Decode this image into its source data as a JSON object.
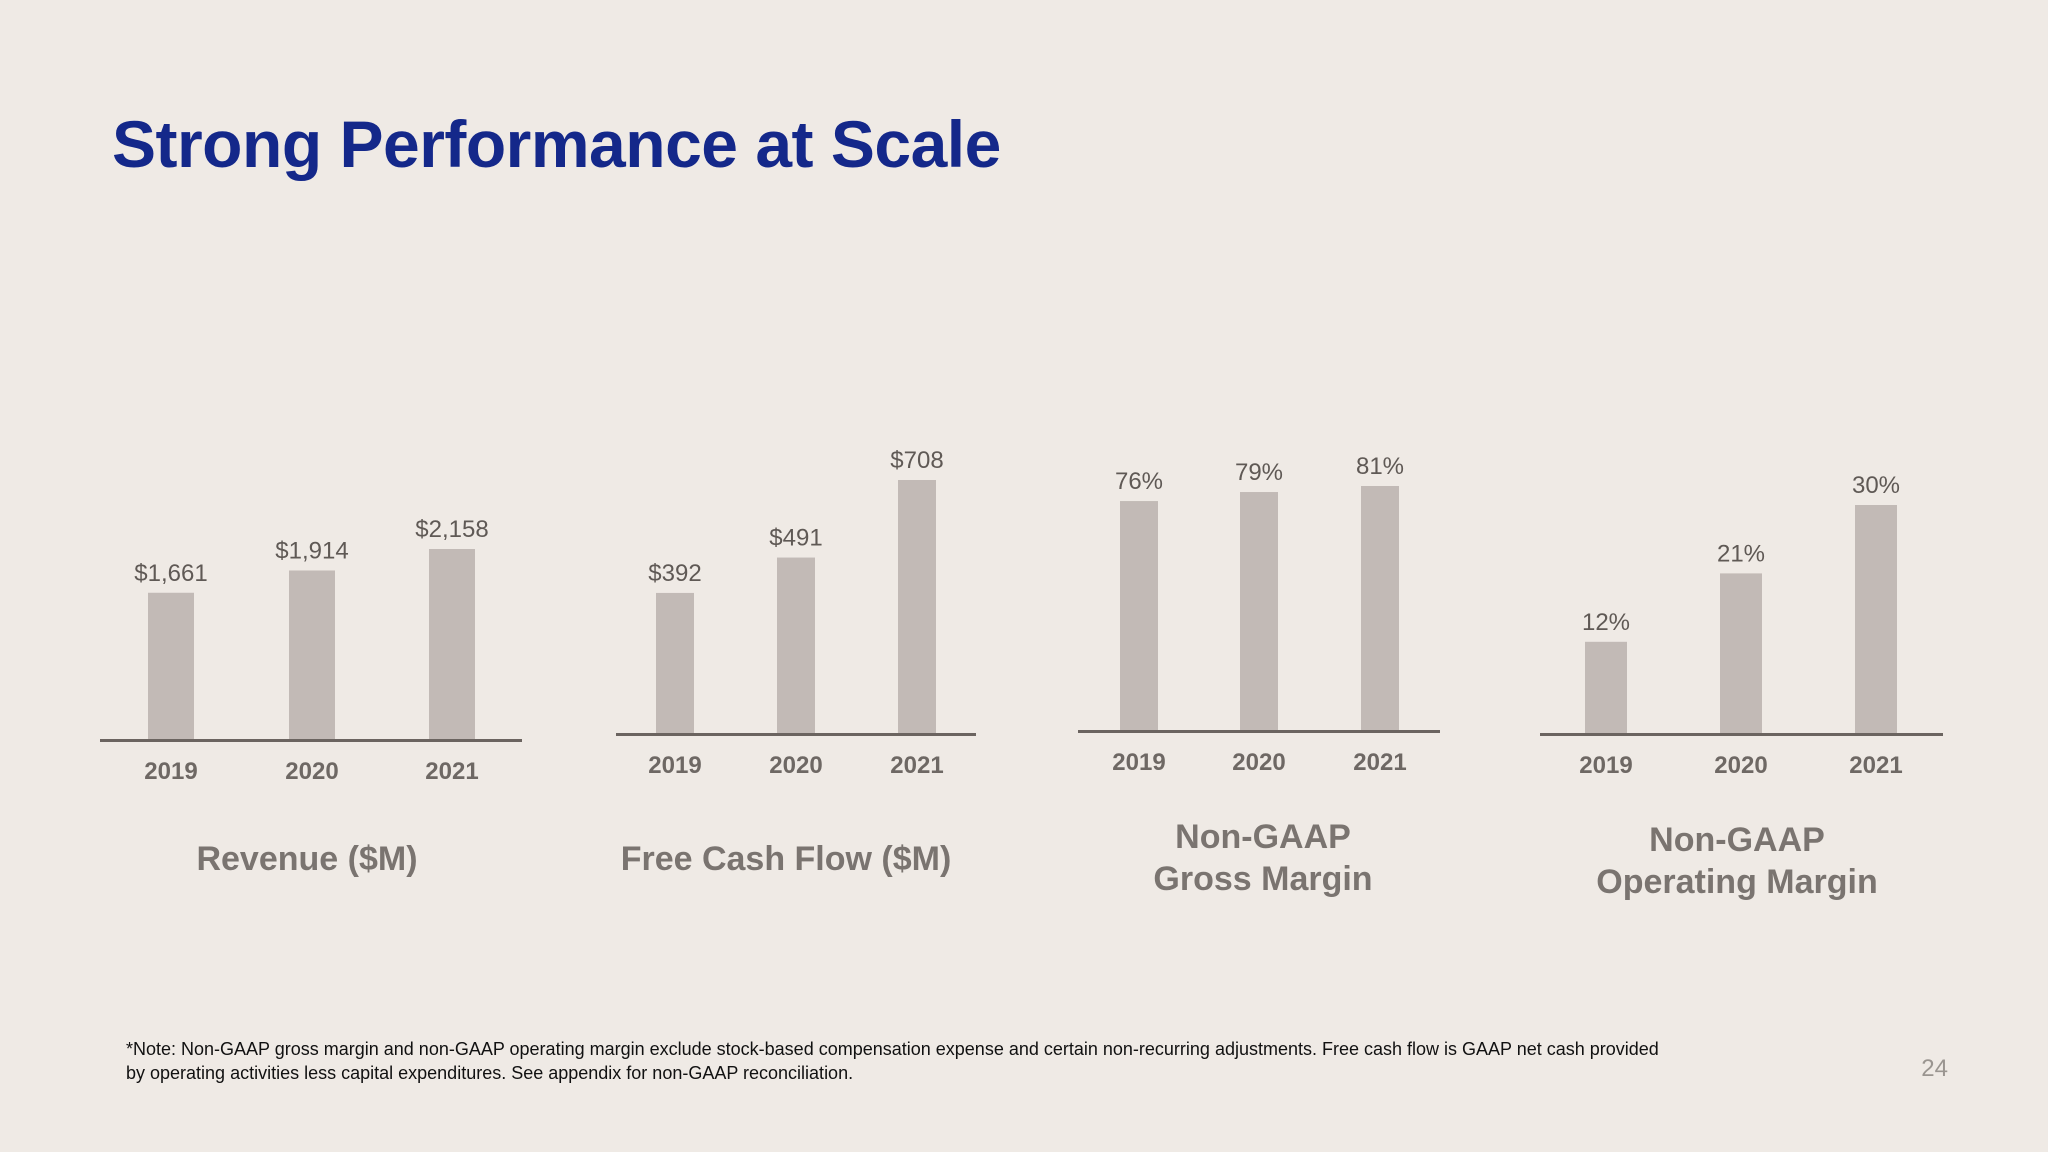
{
  "slide": {
    "title": "Strong Performance at Scale",
    "footnote_line1": "*Note: Non-GAAP gross margin and non-GAAP operating margin exclude stock-based compensation expense and certain non-recurring adjustments. Free cash flow is GAAP net cash provided",
    "footnote_line2": " by operating activities less capital expenditures. See appendix for non-GAAP reconciliation.",
    "page_number": "24"
  },
  "colors": {
    "title": "#14288a",
    "bar": "#c2bab6",
    "axis": "#6b6460",
    "value_label": "#5f5955",
    "tick_label": "#6e6864",
    "caption": "#7a7470"
  },
  "chart_data": [
    {
      "type": "bar",
      "title": "Revenue ($M)",
      "categories": [
        "2019",
        "2020",
        "2021"
      ],
      "values": [
        1661,
        1914,
        2158
      ],
      "value_labels": [
        "$1,661",
        "$1,914",
        "$2,158"
      ]
    },
    {
      "type": "bar",
      "title": "Free Cash Flow ($M)",
      "categories": [
        "2019",
        "2020",
        "2021"
      ],
      "values": [
        392,
        491,
        708
      ],
      "value_labels": [
        "$392",
        "$491",
        "$708"
      ]
    },
    {
      "type": "bar",
      "title": "Non-GAAP\nGross Margin",
      "categories": [
        "2019",
        "2020",
        "2021"
      ],
      "values": [
        76,
        79,
        81
      ],
      "value_labels": [
        "76%",
        "79%",
        "81%"
      ]
    },
    {
      "type": "bar",
      "title": "Non-GAAP\nOperating Margin",
      "categories": [
        "2019",
        "2020",
        "2021"
      ],
      "values": [
        12,
        21,
        30
      ],
      "value_labels": [
        "12%",
        "21%",
        "30%"
      ]
    }
  ]
}
